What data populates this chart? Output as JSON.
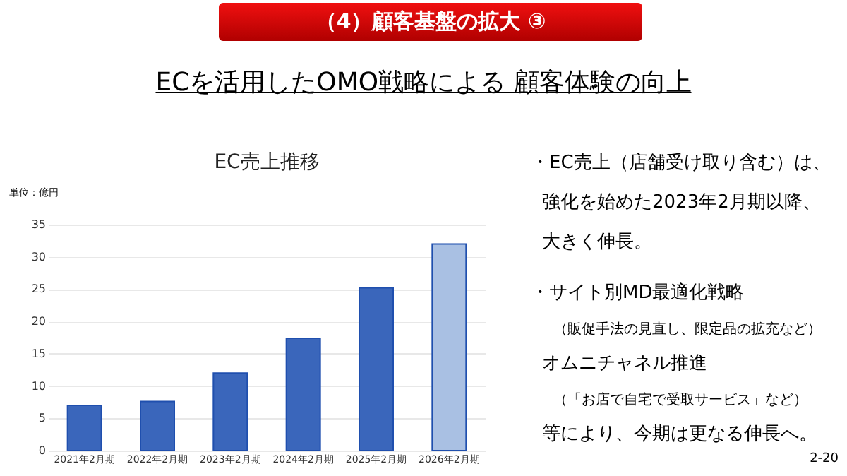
{
  "chart_data": {
    "type": "bar",
    "title": "EC売上推移",
    "subtitle": "（4）顧客基盤の拡大 ③",
    "ylabel": "単位：億円",
    "categories": [
      "2021年2月期",
      "2022年2月期",
      "2023年2月期",
      "2024年2月期",
      "2025年2月期",
      "2026年2月期"
    ],
    "values": [
      7,
      7.6,
      12,
      17.4,
      25.2,
      32
    ],
    "colors": [
      "#3a66bb",
      "#3a66bb",
      "#3a66bb",
      "#3a66bb",
      "#3a66bb",
      "#a9c0e3"
    ],
    "ylim": [
      0,
      35
    ],
    "yticks": [
      0,
      5,
      10,
      15,
      20,
      25,
      30,
      35
    ],
    "grid": "y",
    "annotations": [
      "ECを活用したOMO戦略による 顧客体験の向上",
      "・EC売上（店舗受け取り含む）は、",
      "強化を始めた2023年2月期以降、",
      "大きく伸長。",
      "・サイト別MD最適化戦略",
      "（販促手法の見直し、限定品の拡充など）",
      "オムニチャネル推進",
      "（「お店で自宅で受取サービス」など）",
      "等により、今期は更なる伸長へ。",
      "2-20"
    ]
  }
}
